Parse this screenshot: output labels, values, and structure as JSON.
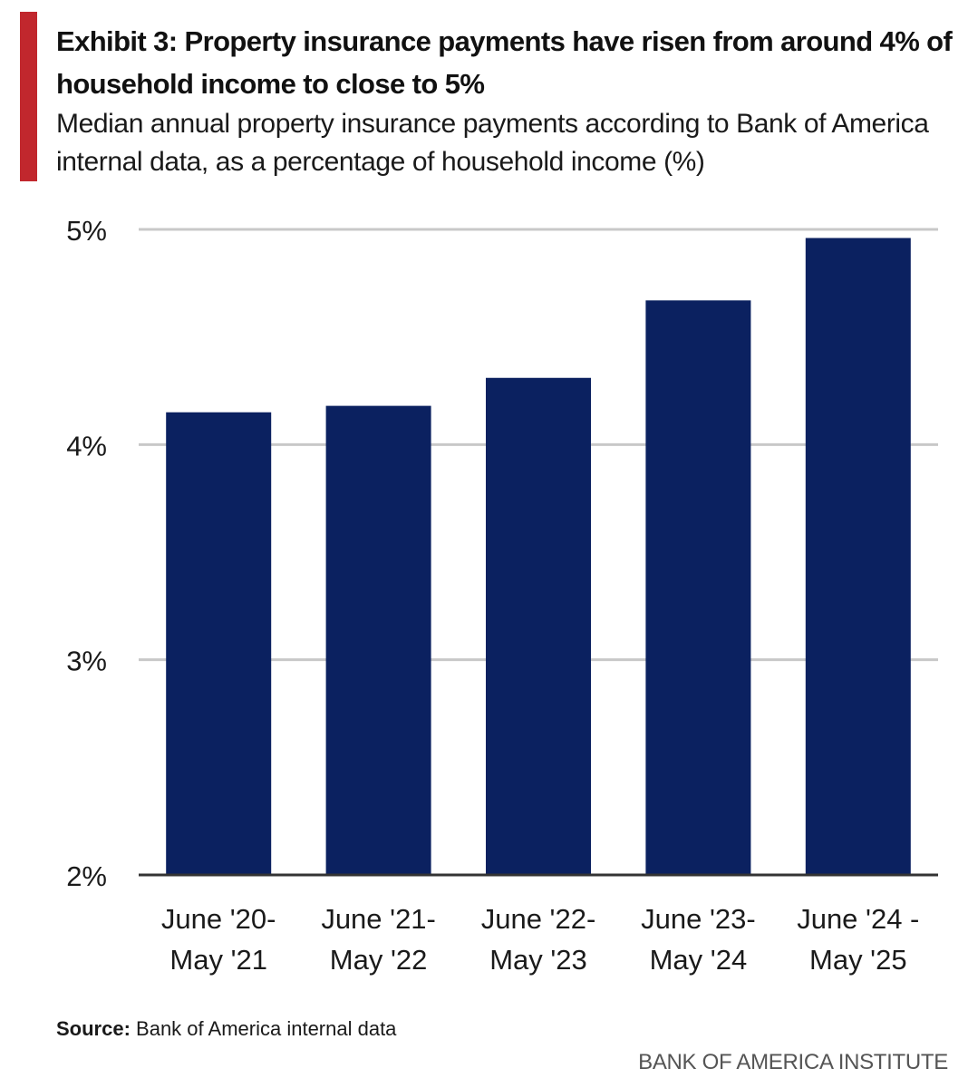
{
  "header": {
    "title": "Exhibit 3: Property insurance payments have risen from around 4% of household income to close to 5%",
    "subtitle": "Median annual property insurance payments according to Bank of America internal data, as a percentage of household income (%)"
  },
  "footer": {
    "source_label": "Source:",
    "source_text": " Bank of America internal data",
    "brand": "BANK OF AMERICA INSTITUTE"
  },
  "colors": {
    "accent": "#c1272d",
    "bar": "#0b2160",
    "grid": "#c8c8c8",
    "axis": "#333333"
  },
  "chart_data": {
    "type": "bar",
    "title": "Exhibit 3: Property insurance payments have risen from around 4% of household income to close to 5%",
    "subtitle": "Median annual property insurance payments according to Bank of America internal data, as a percentage of household income (%)",
    "xlabel": "",
    "ylabel": "",
    "categories": [
      [
        "June '20-",
        "May '21"
      ],
      [
        "June '21-",
        "May '22"
      ],
      [
        "June '22-",
        "May '23"
      ],
      [
        "June '23-",
        "May '24"
      ],
      [
        "June '24 -",
        "May '25"
      ]
    ],
    "values": [
      4.15,
      4.18,
      4.31,
      4.67,
      4.96
    ],
    "ylim": [
      2,
      5
    ],
    "yticks": [
      2,
      3,
      4,
      5
    ],
    "ytick_labels": [
      "2%",
      "3%",
      "4%",
      "5%"
    ],
    "grid": true,
    "legend": "none"
  }
}
